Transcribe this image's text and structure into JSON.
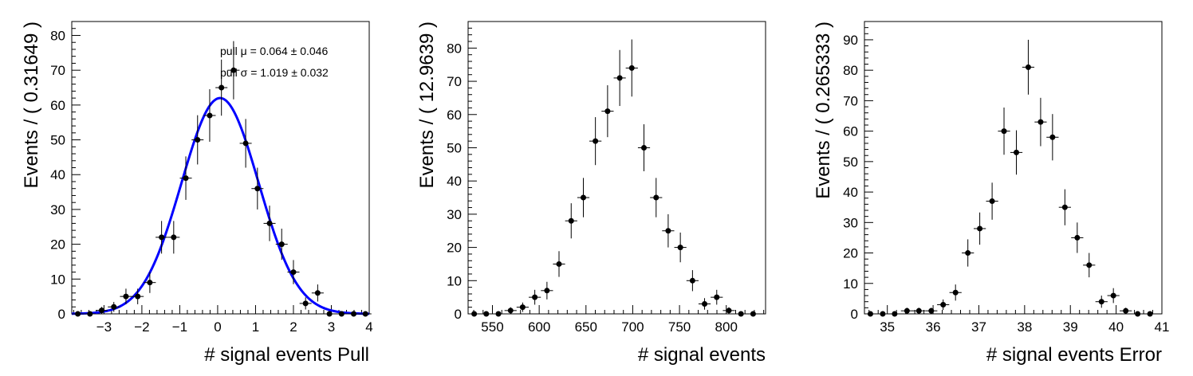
{
  "chart_data": [
    {
      "type": "scatter",
      "xlabel": "# signal events Pull",
      "ylabel": "Events / ( 0.31649 )",
      "xlim": [
        -3.85,
        4.0
      ],
      "ylim": [
        0,
        84
      ],
      "xticks": [
        -3,
        -2,
        -1,
        0,
        1,
        2,
        3,
        4
      ],
      "xtick_labels": [
        "−3",
        "−2",
        "−1",
        "0",
        "1",
        "2",
        "3",
        "4"
      ],
      "yticks": [
        0,
        10,
        20,
        30,
        40,
        50,
        60,
        70,
        80
      ],
      "ytick_labels": [
        "0",
        "10",
        "20",
        "30",
        "40",
        "50",
        "60",
        "70",
        "80"
      ],
      "bin_width": 0.31649,
      "x": [
        -3.69,
        -3.37,
        -3.06,
        -2.74,
        -2.42,
        -2.11,
        -1.79,
        -1.48,
        -1.16,
        -0.84,
        -0.53,
        -0.21,
        0.1,
        0.42,
        0.74,
        1.05,
        1.37,
        1.69,
        2.0,
        2.32,
        2.64,
        2.95,
        3.27,
        3.59,
        3.9
      ],
      "y": [
        0,
        0,
        1,
        2,
        5,
        5,
        9,
        22,
        22,
        39,
        50,
        57,
        65,
        70,
        49,
        36,
        26,
        20,
        12,
        3,
        6,
        0,
        0,
        0,
        0
      ],
      "fit_curve": {
        "type": "gaussian",
        "mu": 0.064,
        "sigma": 1.019,
        "amplitude": 62,
        "color": "#0000ff"
      },
      "annotations": [
        "pull μ =  0.064 ± 0.046",
        "pull σ =  1.019 ± 0.032"
      ]
    },
    {
      "type": "scatter",
      "xlabel": "# signal events",
      "ylabel": "Events / ( 12.9639 )",
      "xlim": [
        524,
        842
      ],
      "ylim": [
        0,
        88
      ],
      "xticks": [
        550,
        600,
        650,
        700,
        750,
        800
      ],
      "xtick_labels": [
        "550",
        "600",
        "650",
        "700",
        "750",
        "800"
      ],
      "yticks": [
        0,
        10,
        20,
        30,
        40,
        50,
        60,
        70,
        80
      ],
      "ytick_labels": [
        "0",
        "10",
        "20",
        "30",
        "40",
        "50",
        "60",
        "70",
        "80"
      ],
      "bin_width": 12.9639,
      "x": [
        530.5,
        543.4,
        556.4,
        569.4,
        582.3,
        595.3,
        608.3,
        621.2,
        634.2,
        647.2,
        660.1,
        673.1,
        686.1,
        699.0,
        712.0,
        725.0,
        737.9,
        750.9,
        763.9,
        776.8,
        789.8,
        802.8,
        815.7,
        828.7
      ],
      "y": [
        0,
        0,
        0,
        1,
        2,
        5,
        7,
        15,
        28,
        35,
        52,
        61,
        71,
        74,
        50,
        35,
        25,
        20,
        10,
        3,
        5,
        1,
        0,
        0
      ]
    },
    {
      "type": "scatter",
      "xlabel": "# signal events Error",
      "ylabel": "Events / ( 0.265333 )",
      "xlim": [
        34.5,
        41.0
      ],
      "ylim": [
        0,
        96
      ],
      "xticks": [
        35,
        36,
        37,
        38,
        39,
        40,
        41
      ],
      "xtick_labels": [
        "35",
        "36",
        "37",
        "38",
        "39",
        "40",
        "41"
      ],
      "yticks": [
        0,
        10,
        20,
        30,
        40,
        50,
        60,
        70,
        80,
        90
      ],
      "ytick_labels": [
        "0",
        "10",
        "20",
        "30",
        "40",
        "50",
        "60",
        "70",
        "80",
        "90"
      ],
      "bin_width": 0.265333,
      "x": [
        34.63,
        34.9,
        35.16,
        35.43,
        35.69,
        35.96,
        36.22,
        36.49,
        36.76,
        37.02,
        37.29,
        37.55,
        37.82,
        38.08,
        38.35,
        38.61,
        38.88,
        39.15,
        39.41,
        39.68,
        39.94,
        40.21,
        40.47,
        40.74
      ],
      "y": [
        0,
        0,
        0,
        1,
        1,
        1,
        3,
        7,
        20,
        28,
        37,
        60,
        53,
        81,
        63,
        58,
        35,
        25,
        16,
        4,
        6,
        1,
        0,
        0
      ]
    }
  ]
}
